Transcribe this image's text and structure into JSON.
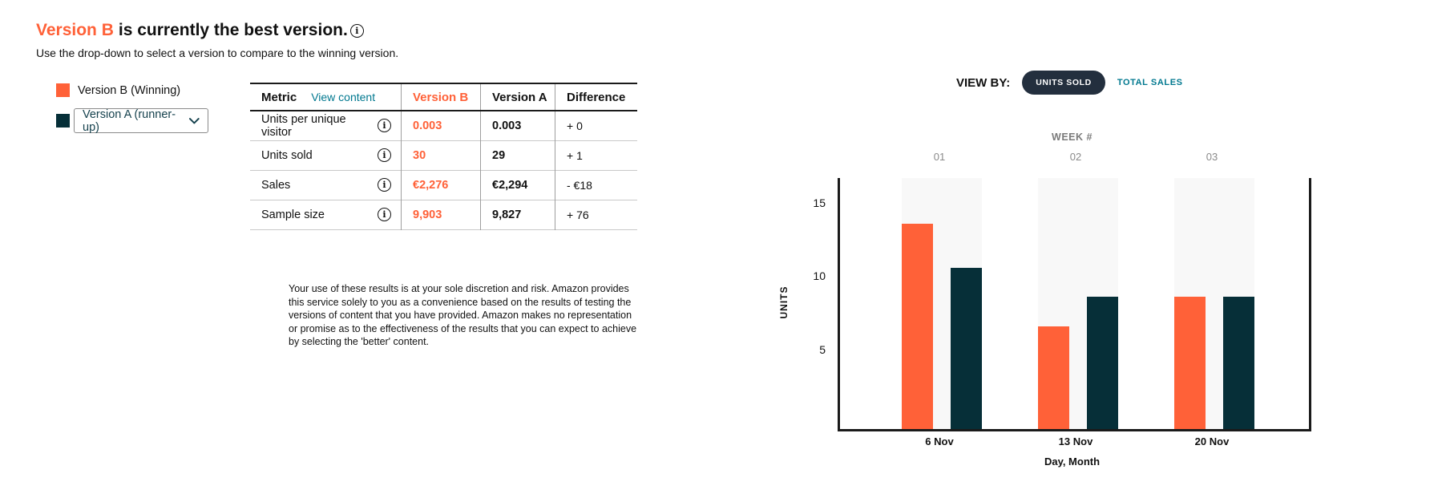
{
  "colors": {
    "version_b_orange": "#FF6138",
    "version_a_dark_teal": "#062F38",
    "link_teal": "#00788F",
    "pill_navy": "#232F3E",
    "band_gray": "#f8f8f8"
  },
  "icons": {
    "info_icon": "i",
    "chevron_down_icon": "chevron-down"
  },
  "header": {
    "winner": "Version B",
    "title_rest": "is currently the best version.",
    "subtitle": "Use the drop-down to select a version to compare to the winning version."
  },
  "legend": {
    "winning_label": "Version B (Winning)",
    "runner_up_selected": "Version A (runner-up)"
  },
  "table": {
    "headers": {
      "metric": "Metric",
      "view_content": "View content",
      "version_b": "Version B",
      "version_a": "Version A",
      "difference": "Difference"
    },
    "rows": [
      {
        "metric": "Units per unique visitor",
        "b": "0.003",
        "a": "0.003",
        "diff": "+ 0"
      },
      {
        "metric": "Units sold",
        "b": "30",
        "a": "29",
        "diff": "+ 1"
      },
      {
        "metric": "Sales",
        "b": "€2,276",
        "a": "€2,294",
        "diff": "- €18"
      },
      {
        "metric": "Sample size",
        "b": "9,903",
        "a": "9,827",
        "diff": "+ 76"
      }
    ]
  },
  "disclaimer": "Your use of these results is at your sole discretion and risk. Amazon provides this service solely to you as a convenience based on the results of testing the versions of content that you have provided. Amazon makes no representation or promise as to the effectiveness of the results that you can expect to achieve by selecting the 'better' content.",
  "view_by": {
    "label": "VIEW BY:",
    "options": [
      {
        "label": "UNITS SOLD",
        "selected": true
      },
      {
        "label": "TOTAL SALES",
        "selected": false
      }
    ]
  },
  "chart_data": {
    "type": "bar",
    "title": "WEEK #",
    "week_labels": [
      "01",
      "02",
      "03"
    ],
    "categories": [
      "6 Nov",
      "13 Nov",
      "20 Nov"
    ],
    "series": [
      {
        "name": "Version B (Winning)",
        "color": "#FF6138",
        "values": [
          14,
          7,
          9
        ]
      },
      {
        "name": "Version A (runner-up)",
        "color": "#062F38",
        "values": [
          11,
          9,
          9
        ]
      }
    ],
    "xlabel": "Day, Month",
    "ylabel": "UNITS",
    "yticks": [
      5,
      10,
      15
    ],
    "ylim": [
      0,
      17
    ],
    "grid": false,
    "legend_position": "external-left"
  }
}
